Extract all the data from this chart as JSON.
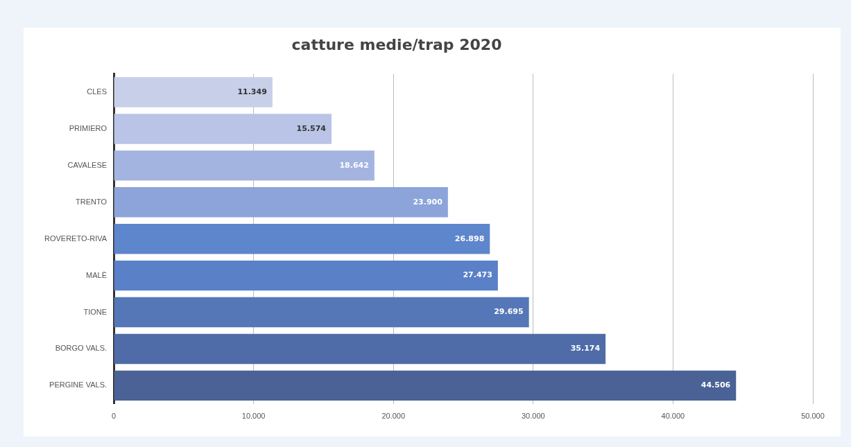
{
  "chart_data": {
    "type": "bar",
    "orientation": "horizontal",
    "title": "catture medie/trap 2020",
    "categories": [
      "CLES",
      "PRIMIERO",
      "CAVALESE",
      "TRENTO",
      "ROVERETO-RIVA",
      "MALÈ",
      "TIONE",
      "BORGO VALS.",
      "PERGINE VALS."
    ],
    "values": [
      11349,
      15574,
      18642,
      23900,
      26898,
      27473,
      29695,
      35174,
      44506
    ],
    "value_labels": [
      "11.349",
      "15.574",
      "18.642",
      "23.900",
      "26.898",
      "27.473",
      "29.695",
      "35.174",
      "44.506"
    ],
    "colors": [
      "#c8cfe8",
      "#b9c4e6",
      "#a3b4e0",
      "#8ca4da",
      "#5e86cc",
      "#5a80c8",
      "#5577b8",
      "#4f6ca8",
      "#4a6296"
    ],
    "xlim": [
      0,
      50000
    ],
    "xticks": [
      0,
      {
        "value": 10000,
        "label": "10.000"
      },
      {
        "value": 20000,
        "label": "20.000"
      },
      {
        "value": 30000,
        "label": "30.000"
      },
      {
        "value": 40000,
        "label": "40.000"
      },
      {
        "value": 50000,
        "label": "50.000"
      }
    ],
    "grid": "x"
  }
}
